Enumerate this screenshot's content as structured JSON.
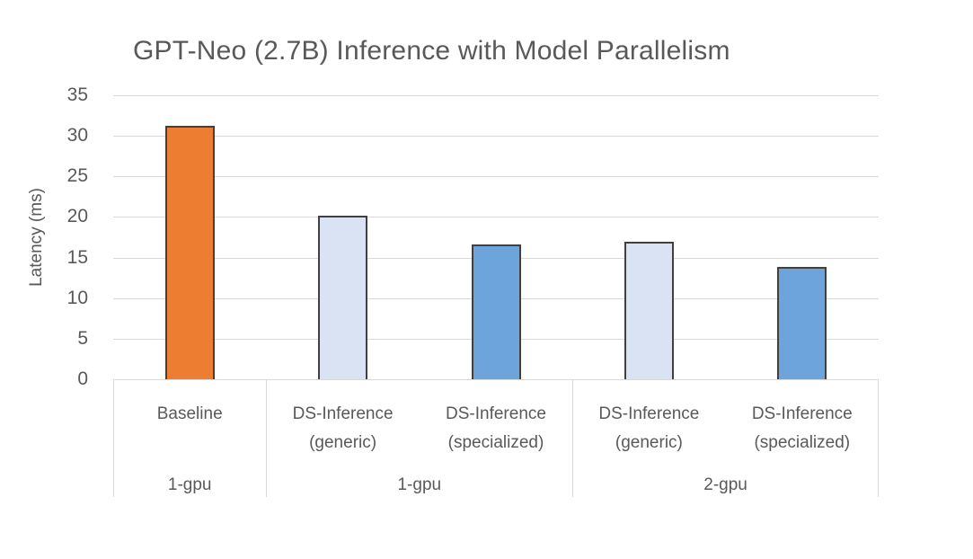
{
  "chart_data": {
    "type": "bar",
    "title": "GPT-Neo (2.7B) Inference with Model Parallelism",
    "ylabel": "Latency (ms)",
    "xlabel": "",
    "ylim": [
      0,
      35
    ],
    "yticks": [
      0,
      5,
      10,
      15,
      20,
      25,
      30,
      35
    ],
    "grid": true,
    "legend": "none",
    "categories": [
      "Baseline",
      "DS-Inference (generic)",
      "DS-Inference (specialized)",
      "DS-Inference (generic)",
      "DS-Inference (specialized)"
    ],
    "values": [
      31.2,
      20.2,
      16.6,
      16.9,
      13.8
    ],
    "groups": [
      {
        "label": "1-gpu",
        "bars": [
          {
            "category": "Baseline",
            "category_lines": [
              "Baseline"
            ],
            "value": 31.2,
            "fill": "#ED7D31",
            "series": "baseline"
          }
        ]
      },
      {
        "label": "1-gpu",
        "bars": [
          {
            "category": "DS-Inference (generic)",
            "category_lines": [
              "DS-Inference",
              "(generic)"
            ],
            "value": 20.2,
            "fill": "#DAE3F3",
            "series": "ds-inference-generic"
          },
          {
            "category": "DS-Inference (specialized)",
            "category_lines": [
              "DS-Inference",
              "(specialized)"
            ],
            "value": 16.6,
            "fill": "#6EA4DC",
            "series": "ds-inference-specialized"
          }
        ]
      },
      {
        "label": "2-gpu",
        "bars": [
          {
            "category": "DS-Inference (generic)",
            "category_lines": [
              "DS-Inference",
              "(generic)"
            ],
            "value": 16.9,
            "fill": "#DAE3F3",
            "series": "ds-inference-generic"
          },
          {
            "category": "DS-Inference (specialized)",
            "category_lines": [
              "DS-Inference",
              "(specialized)"
            ],
            "value": 13.8,
            "fill": "#6EA4DC",
            "series": "ds-inference-specialized"
          }
        ]
      }
    ],
    "colors": {
      "baseline_fill": "#ED7D31",
      "generic_fill": "#DAE3F3",
      "specialized_fill": "#6EA4DC",
      "bar_border": "#404040",
      "gridline": "#D9D9D9",
      "axis_frame": "#D9D9D9",
      "text": "#595959",
      "background": "#FFFFFF"
    }
  }
}
